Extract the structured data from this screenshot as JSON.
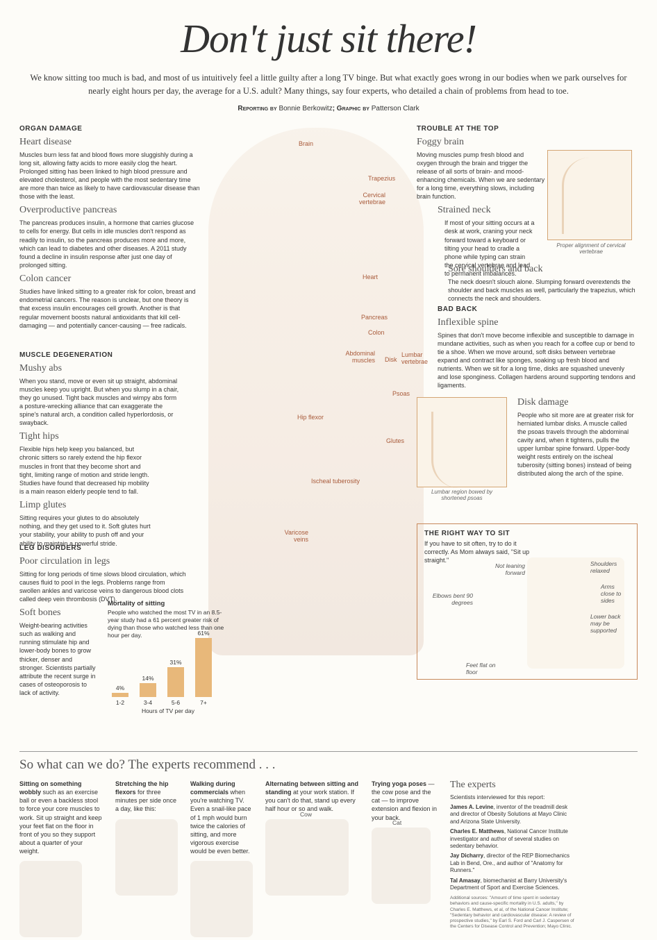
{
  "title": "Don't just sit there!",
  "intro": "We know sitting too much is bad, and most of us intuitively feel a little guilty after a long TV binge. But what exactly goes wrong in our bodies when we park ourselves for nearly eight hours per day, the average for a U.S. adult? Many things, say four experts, who detailed a chain of problems from head to toe.",
  "byline_label": "Reporting by",
  "byline_reporter": "Bonnie Berkowitz",
  "byline_graphic_label": "; Graphic by",
  "byline_artist": "Patterson Clark",
  "left": {
    "organ": {
      "heading": "ORGAN DAMAGE",
      "heart": {
        "title": "Heart disease",
        "text": "Muscles burn less fat and blood flows more sluggishly during a long sit, allowing fatty acids to more easily clog the heart. Prolonged sitting has been linked to high blood pressure and elevated cholesterol, and people with the most sedentary time are more than twice as likely to have cardiovascular disease than those with the least."
      },
      "pancreas": {
        "title": "Overproductive pancreas",
        "text": "The pancreas produces insulin, a hormone that carries glucose to cells for energy. But cells in idle muscles don't respond as readily to insulin, so the pancreas produces more and more, which can lead to diabetes and other diseases. A 2011 study found a decline in insulin response after just one day of prolonged sitting."
      },
      "colon": {
        "title": "Colon cancer",
        "text": "Studies have linked sitting to a greater risk for colon, breast and endometrial cancers. The reason is unclear, but one theory is that excess insulin encourages cell growth. Another is that regular movement boosts natural antioxidants that kill cell-damaging — and potentially cancer-causing — free radicals."
      }
    },
    "muscle": {
      "heading": "MUSCLE DEGENERATION",
      "abs": {
        "title": "Mushy abs",
        "text": "When you stand, move or even sit up straight, abdominal muscles keep you upright. But when you slump in a chair, they go unused. Tight back muscles and wimpy abs form a posture-wrecking alliance that can exaggerate the spine's natural arch, a condition called hyperlordosis, or swayback."
      },
      "hips": {
        "title": "Tight hips",
        "text": "Flexible hips help keep you balanced, but chronic sitters so rarely extend the hip flexor muscles in front that they become short and tight, limiting range of motion and stride length. Studies have found that decreased hip mobility is a main reason elderly people tend to fall."
      },
      "glutes": {
        "title": "Limp glutes",
        "text": "Sitting requires your glutes to do absolutely nothing, and they get used to it. Soft glutes hurt your stability, your ability to push off and your ability to maintain a powerful stride."
      }
    },
    "leg": {
      "heading": "LEG DISORDERS",
      "circ": {
        "title": "Poor circulation in legs",
        "text": "Sitting for long periods of time slows blood circulation, which causes fluid to pool in the legs. Problems range from swollen ankles and varicose veins to dangerous blood clots called deep vein thrombosis (DVT)."
      },
      "bones": {
        "title": "Soft bones",
        "text": "Weight-bearing activities such as walking and running stimulate hip and lower-body bones to grow thicker, denser and stronger. Scientists partially attribute the recent surge in cases of osteoporosis to lack of activity."
      }
    }
  },
  "right": {
    "top": {
      "heading": "TROUBLE AT THE TOP",
      "brain": {
        "title": "Foggy brain",
        "text": "Moving muscles pump fresh blood and oxygen through the brain and trigger the release of all sorts of brain- and mood-enhancing chemicals. When we are sedentary for a long time, everything slows, including brain function."
      },
      "neck": {
        "title": "Strained neck",
        "text": "If most of your sitting occurs at a desk at work, craning your neck forward toward a keyboard or tilting your head to cradle a phone while typing can strain the cervical vertebrae and lead to permanent imbalances."
      },
      "shoulders": {
        "title": "Sore shoulders and back",
        "text": "The neck doesn't slouch alone. Slumping forward overextends the shoulder and back muscles as well, particularly the trapezius, which connects the neck and shoulders."
      }
    },
    "back": {
      "heading": "BAD BACK",
      "spine": {
        "title": "Inflexible spine",
        "text": "Spines that don't move become inflexible and susceptible to damage in mundane activities, such as when you reach for a coffee cup or bend to tie a shoe. When we move around, soft disks between vertebrae expand and contract like sponges, soaking up fresh blood and nutrients. When we sit for a long time, disks are squashed unevenly and lose sponginess. Collagen hardens around supporting tendons and ligaments."
      },
      "disk": {
        "title": "Disk damage",
        "text": "People who sit more are at greater risk for herniated lumbar disks. A muscle called the psoas travels through the abdominal cavity and, when it tightens, pulls the upper lumbar spine forward. Upper-body weight rests entirely on the ischeal tuberosity (sitting bones) instead of being distributed along the arch of the spine."
      }
    }
  },
  "spine_caption": "Proper alignment of cervical vertebrae",
  "lumbar_caption": "Lumbar region bowed by shortened psoas",
  "sit": {
    "heading": "THE RIGHT WAY TO SIT",
    "text": "If you have to sit often, try to do it correctly. As Mom always said, \"Sit up straight.\"",
    "tips": {
      "lean": "Not leaning forward",
      "shoulders": "Shoulders relaxed",
      "elbows": "Elbows bent 90 degrees",
      "arms": "Arms close to sides",
      "lower": "Lower back may be supported",
      "feet": "Feet flat on floor"
    }
  },
  "chart": {
    "type": "bar",
    "title": "Mortality of sitting",
    "desc": "People who watched the most TV in an 8.5-year study had a 61 percent greater risk of dying than those who watched less than one hour per day.",
    "categories": [
      "1-2",
      "3-4",
      "5-6",
      "7+"
    ],
    "values": [
      4,
      14,
      31,
      61
    ],
    "value_labels": [
      "4%",
      "14%",
      "31%",
      "61%"
    ],
    "xlabel": "Hours of TV per day",
    "bar_color": "#e8b87a",
    "max": 65
  },
  "anatomy": {
    "brain": "Brain",
    "trapezius": "Trapezius",
    "cervical": "Cervical vertebrae",
    "heart": "Heart",
    "pancreas": "Pancreas",
    "colon": "Colon",
    "abdominal": "Abdominal muscles",
    "disk": "Disk",
    "lumbar": "Lumbar vertebrae",
    "psoas": "Psoas",
    "hipflexor": "Hip flexor",
    "glutes": "Glutes",
    "ischeal": "Ischeal tuberosity",
    "varicose": "Varicose veins"
  },
  "recs": {
    "title": "So what can we do? The experts recommend . . .",
    "wobbly": {
      "bold": "Sitting on something wobbly",
      "text": " such as an exercise ball or even a backless stool to force your core muscles to work. Sit up straight and keep your feet flat on the floor in front of you so they support about a quarter of your weight."
    },
    "stretch": {
      "bold": "Stretching the hip flexors",
      "text": " for three minutes per side once a day, like this:"
    },
    "walk": {
      "bold": "Walking during commercials",
      "text": " when you're watching TV. Even a snail-like pace of 1 mph would burn twice the calories of sitting, and more vigorous exercise would be even better."
    },
    "alternate": {
      "bold": "Alternating between sitting and standing",
      "text": " at your work station. If you can't do that, stand up every half hour or so and walk."
    },
    "yoga": {
      "bold": "Trying yoga poses",
      "text": " — the cow pose and the cat — to improve extension and flexion in your back.",
      "cow": "Cow",
      "cat": "Cat"
    }
  },
  "experts": {
    "title": "The experts",
    "intro": "Scientists interviewed for this report:",
    "list": [
      {
        "name": "James A. Levine",
        "desc": ", inventor of the treadmill desk and director of Obesity Solutions at Mayo Clinic and Arizona State University."
      },
      {
        "name": "Charles E. Matthews",
        "desc": ", National Cancer Institute investigator and author of several studies on sedentary behavior."
      },
      {
        "name": "Jay Dicharry",
        "desc": ", director of the REP Biomechanics Lab in Bend, Ore., and author of \"Anatomy for Runners.\""
      },
      {
        "name": "Tal Amasay",
        "desc": ", biomechanist at Barry University's Department of Sport and Exercise Sciences."
      }
    ],
    "sources": "Additional sources: \"Amount of time spent in sedentary behaviors and cause-specific mortality in U.S. adults,\" by Charles E. Matthews, et al, of the National Cancer Institute; \"Sedentary behavior and cardiovascular disease: A review of prospective studies,\" by Earl S. Ford and Carl J. Caspersen of the Centers for Disease Control and Prevention; Mayo Clinic."
  }
}
